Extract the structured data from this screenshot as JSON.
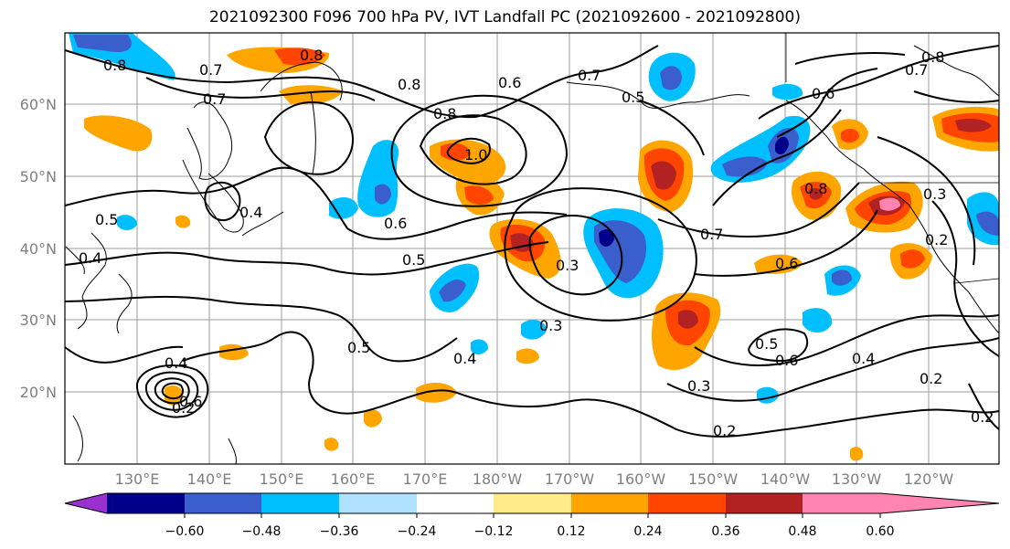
{
  "title": "2021092300 F096 700 hPa PV, IVT Landfall PC (2021092600 - 2021092800)",
  "lat_labels": [
    "60°N",
    "50°N",
    "40°N",
    "30°N",
    "20°N"
  ],
  "lon_labels": [
    "130°E",
    "140°E",
    "150°E",
    "160°E",
    "170°E",
    "180°W",
    "170°W",
    "160°W",
    "150°W",
    "140°W",
    "130°W",
    "120°W"
  ],
  "colorbar": {
    "ticks": [
      "−0.60",
      "−0.48",
      "−0.36",
      "−0.24",
      "−0.12",
      "0.12",
      "0.24",
      "0.36",
      "0.48",
      "0.60"
    ],
    "colors": [
      "#9b30d0",
      "#00008b",
      "#3a5fcd",
      "#00bfff",
      "#b0e2ff",
      "#ffffff",
      "#ffeb8a",
      "#ffa500",
      "#ff4500",
      "#b22222",
      "#ff85b0"
    ]
  },
  "contour_labels": [
    "0.8",
    "0.7",
    "0.7",
    "0.8",
    "0.8",
    "0.6",
    "0.7",
    "0.5",
    "0.6",
    "0.7",
    "0.8",
    "0.8",
    "1.0",
    "0.5",
    "0.4",
    "0.6",
    "0.5",
    "0.4",
    "0.3",
    "0.7",
    "0.6",
    "0.8",
    "0.3",
    "0.2",
    "0.3",
    "0.5",
    "0.4",
    "0.5",
    "0.6",
    "0.4",
    "0.3",
    "0.2",
    "0.2",
    "0.2",
    "0.2",
    "0.4",
    "0.6"
  ]
}
